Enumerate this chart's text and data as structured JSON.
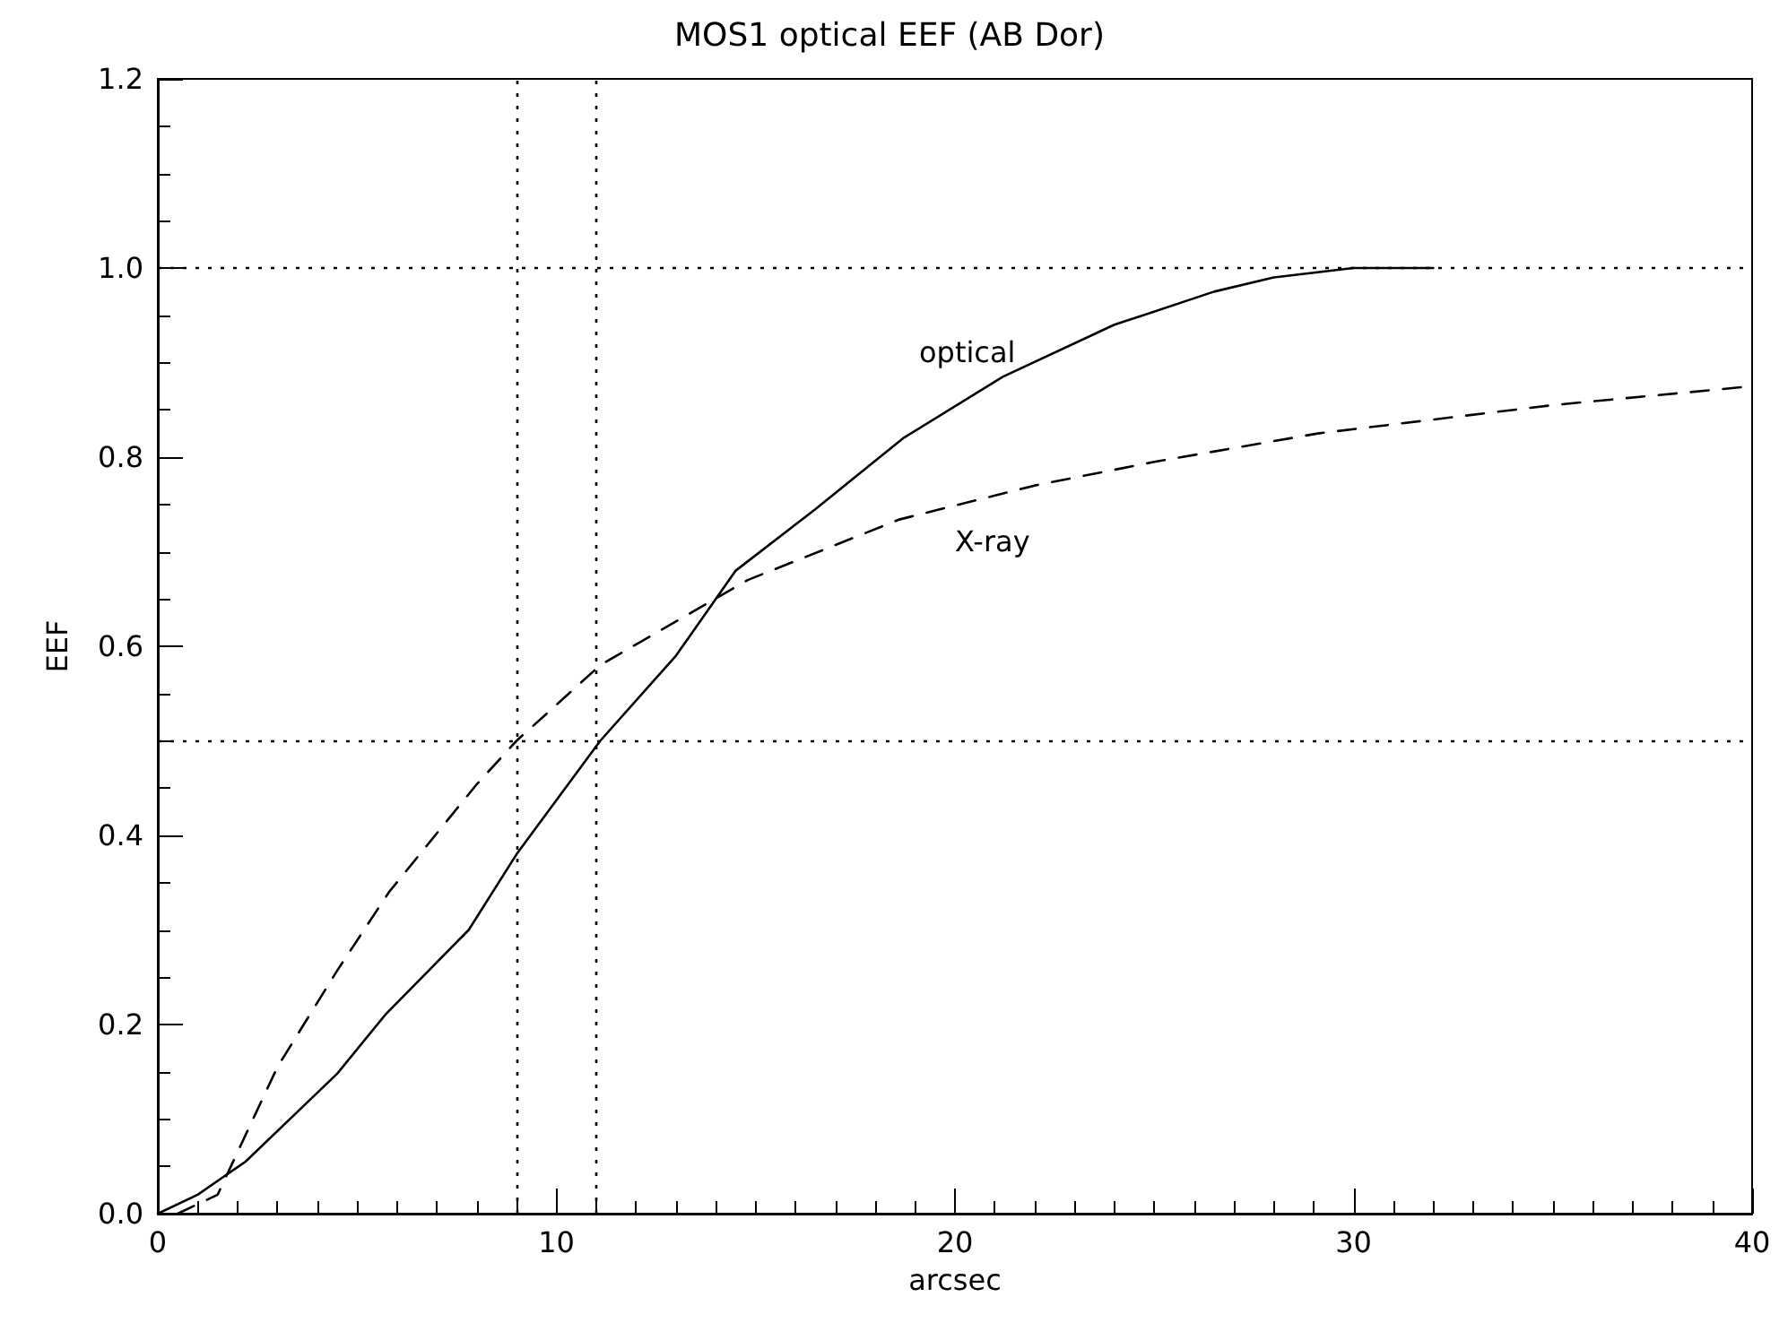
{
  "chart_data": {
    "type": "line",
    "title": "MOS1 optical EEF (AB Dor)",
    "xlabel": "arcsec",
    "ylabel": "EEF",
    "xlim": [
      0,
      40
    ],
    "xticks": [
      0,
      10,
      20,
      30,
      40
    ],
    "ylim": [
      0,
      1.2
    ],
    "yticks": [
      {
        "value": 0,
        "label": "0.0"
      },
      {
        "value": 0.2,
        "label": "0.2"
      },
      {
        "value": 0.4,
        "label": "0.4"
      },
      {
        "value": 0.6,
        "label": "0.6"
      },
      {
        "value": 0.8,
        "label": "0.8"
      },
      {
        "value": 1,
        "label": "1.0"
      },
      {
        "value": 1.2,
        "label": "1.2"
      }
    ],
    "grid": false,
    "legend": false,
    "marker": "none",
    "series": [
      {
        "name": "optical",
        "color": "#000000",
        "line_style": "solid",
        "x": [
          0,
          1,
          2.2,
          4.5,
          5.7,
          7.8,
          9,
          11.1,
          13,
          14.5,
          16.5,
          18.7,
          21.2,
          24,
          26.5,
          28,
          30,
          32
        ],
        "values": [
          0,
          0.02,
          0.055,
          0.148,
          0.21,
          0.3,
          0.38,
          0.5,
          0.59,
          0.68,
          0.745,
          0.82,
          0.885,
          0.94,
          0.975,
          0.99,
          1,
          1
        ]
      },
      {
        "name": "X-ray",
        "color": "#000000",
        "line_style": "dashed",
        "x": [
          0.5,
          1.5,
          3,
          4.5,
          5.8,
          8,
          9,
          11.1,
          14.8,
          18.6,
          22,
          25,
          29.1,
          35,
          40
        ],
        "values": [
          0,
          0.02,
          0.155,
          0.257,
          0.34,
          0.454,
          0.5,
          0.58,
          0.67,
          0.734,
          0.77,
          0.795,
          0.825,
          0.855,
          0.875
        ]
      }
    ],
    "ref_lines": [
      {
        "axis": "x",
        "value": 9,
        "line_style": "dotted",
        "color": "#000000"
      },
      {
        "axis": "x",
        "value": 11,
        "line_style": "dotted",
        "color": "#000000"
      },
      {
        "axis": "y",
        "value": 1,
        "line_style": "dotted",
        "color": "#000000"
      },
      {
        "axis": "y",
        "value": 0.5,
        "line_style": "dotted",
        "color": "#000000"
      }
    ]
  }
}
